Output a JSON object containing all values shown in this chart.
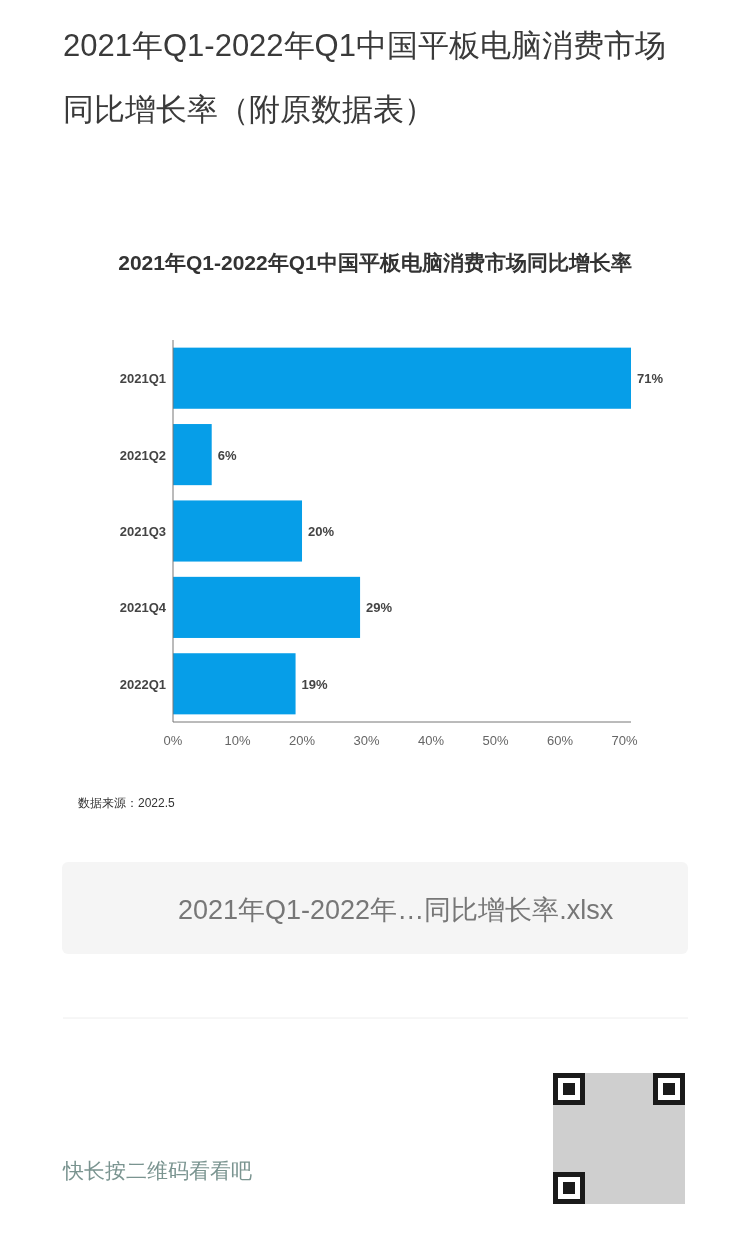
{
  "chart_data": {
    "type": "bar",
    "orientation": "horizontal",
    "title": "2021年Q1-2022年Q1中国平板电脑消费市场同比增长率（附原数据表）",
    "subtitle": "2021年Q1-2022年Q1中国平板电脑消费市场同比增长率",
    "categories": [
      "2021Q1",
      "2021Q2",
      "2021Q3",
      "2021Q4",
      "2022Q1"
    ],
    "values": [
      71,
      6,
      20,
      29,
      19
    ],
    "value_labels": [
      "71%",
      "6%",
      "20%",
      "29%",
      "19%"
    ],
    "color": "#069ee8",
    "xlim": [
      0,
      71
    ],
    "xticks": [
      {
        "value": 0,
        "label": "0%"
      },
      {
        "value": 10,
        "label": "10%"
      },
      {
        "value": 20,
        "label": "20%"
      },
      {
        "value": 30,
        "label": "30%"
      },
      {
        "value": 40,
        "label": "40%"
      },
      {
        "value": 50,
        "label": "50%"
      },
      {
        "value": 60,
        "label": "60%"
      },
      {
        "value": 70,
        "label": "70%"
      }
    ],
    "annotations": [
      "数据来源：2022.5",
      "2021年Q1-2022年…同比增长率.xlsx",
      "快长按二维码看看吧"
    ]
  }
}
